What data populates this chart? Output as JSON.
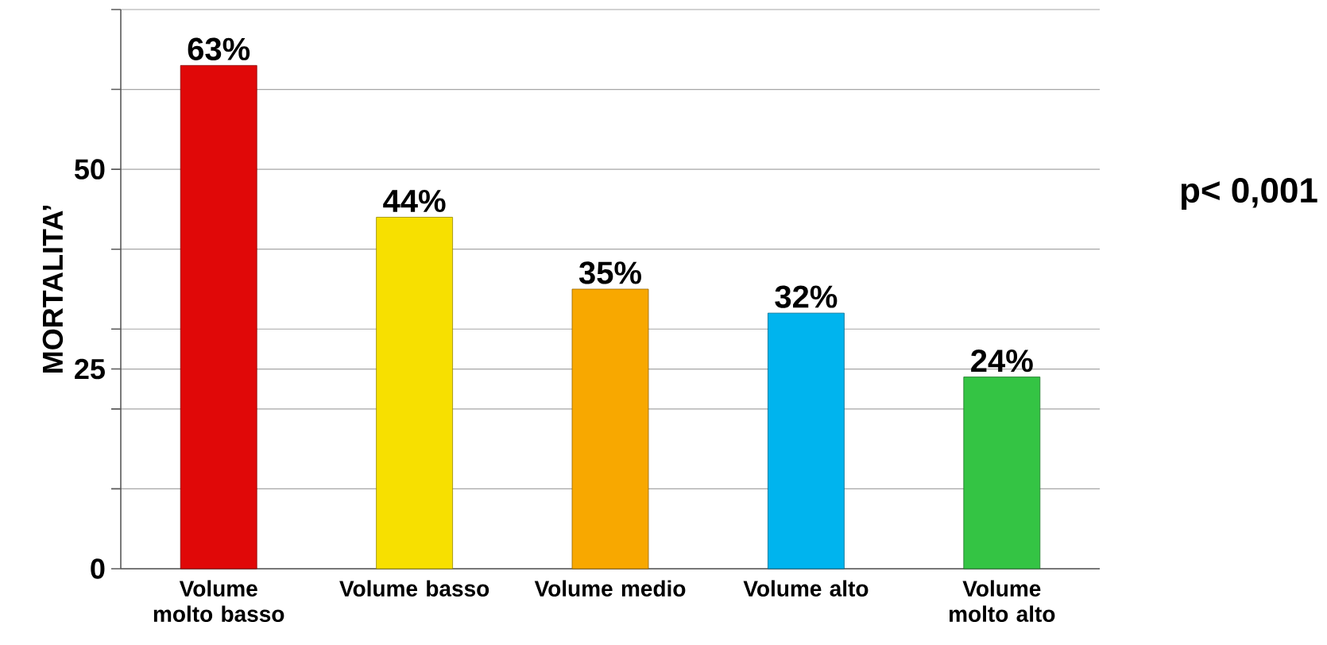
{
  "chart_data": {
    "type": "bar",
    "ylabel": "MORTALITA’",
    "categories": [
      "Volume molto basso",
      "Volume basso",
      "Volume medio",
      "Volume alto",
      "Volume molto alto"
    ],
    "values": [
      63,
      44,
      35,
      32,
      24
    ],
    "value_labels": [
      "63%",
      "44%",
      "35%",
      "32%",
      "24%"
    ],
    "colors": [
      "#e00808",
      "#f7e000",
      "#f8a800",
      "#00b4ee",
      "#34c444"
    ],
    "ylim": [
      0,
      70
    ],
    "yticks": [
      0,
      {
        "value": 10,
        "label": null
      },
      {
        "value": 20,
        "label": null
      },
      25,
      {
        "value": 30,
        "label": null
      },
      {
        "value": 40,
        "label": null
      },
      50,
      {
        "value": 60,
        "label": null
      },
      {
        "value": 70,
        "label": null
      }
    ],
    "grid": "y",
    "annotations": [
      "p< 0,001"
    ]
  }
}
